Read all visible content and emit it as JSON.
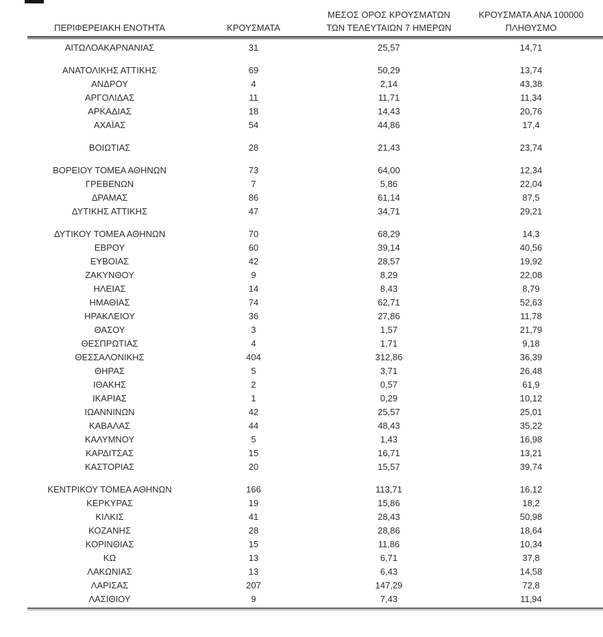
{
  "table": {
    "header": {
      "col1": "ΠΕΡΙΦΕΡΕΙΑΚΗ ΕΝΟΤΗΤΑ",
      "col2": "ΚΡΟΥΣΜΑΤΑ",
      "col3_line1": "ΜΕΣΟΣ ΟΡΟΣ ΚΡΟΥΣΜΑΤΩΝ",
      "col3_line2": "ΤΩΝ ΤΕΛΕΥΤΑΙΩΝ 7 ΗΜΕΡΩΝ",
      "col4_line1": "ΚΡΟΥΣΜΑΤΑ ΑΝΑ 100000",
      "col4_line2": "ΠΛΗΘΥΣΜΟ"
    },
    "row_fields": [
      "region",
      "cases",
      "avg_7day",
      "per_100k"
    ],
    "groups": [
      {
        "rows": [
          {
            "region": "ΑΙΤΩΛΟΑΚΑΡΝΑΝΙΑΣ",
            "cases": "31",
            "avg_7day": "25,57",
            "per_100k": "14,71"
          }
        ]
      },
      {
        "rows": [
          {
            "region": "ΑΝΑΤΟΛΙΚΗΣ ΑΤΤΙΚΗΣ",
            "cases": "69",
            "avg_7day": "50,29",
            "per_100k": "13,74"
          },
          {
            "region": "ΑΝΔΡΟΥ",
            "cases": "4",
            "avg_7day": "2,14",
            "per_100k": "43,38"
          },
          {
            "region": "ΑΡΓΟΛΙΔΑΣ",
            "cases": "11",
            "avg_7day": "11,71",
            "per_100k": "11,34"
          },
          {
            "region": "ΑΡΚΑΔΙΑΣ",
            "cases": "18",
            "avg_7day": "14,43",
            "per_100k": "20,76"
          },
          {
            "region": "ΑΧΑΪΑΣ",
            "cases": "54",
            "avg_7day": "44,86",
            "per_100k": "17,4"
          }
        ]
      },
      {
        "rows": [
          {
            "region": "ΒΟΙΩΤΙΑΣ",
            "cases": "28",
            "avg_7day": "21,43",
            "per_100k": "23,74"
          }
        ]
      },
      {
        "rows": [
          {
            "region": "ΒΟΡΕΙΟΥ ΤΟΜΕΑ ΑΘΗΝΩΝ",
            "cases": "73",
            "avg_7day": "64,00",
            "per_100k": "12,34"
          },
          {
            "region": "ΓΡΕΒΕΝΩΝ",
            "cases": "7",
            "avg_7day": "5,86",
            "per_100k": "22,04"
          },
          {
            "region": "ΔΡΑΜΑΣ",
            "cases": "86",
            "avg_7day": "61,14",
            "per_100k": "87,5"
          },
          {
            "region": "ΔΥΤΙΚΗΣ ΑΤΤΙΚΗΣ",
            "cases": "47",
            "avg_7day": "34,71",
            "per_100k": "29,21"
          }
        ]
      },
      {
        "rows": [
          {
            "region": "ΔΥΤΙΚΟΥ ΤΟΜΕΑ ΑΘΗΝΩΝ",
            "cases": "70",
            "avg_7day": "68,29",
            "per_100k": "14,3"
          },
          {
            "region": "ΕΒΡΟΥ",
            "cases": "60",
            "avg_7day": "39,14",
            "per_100k": "40,56"
          },
          {
            "region": "ΕΥΒΟΙΑΣ",
            "cases": "42",
            "avg_7day": "28,57",
            "per_100k": "19,92"
          },
          {
            "region": "ΖΑΚΥΝΘΟΥ",
            "cases": "9",
            "avg_7day": "8,29",
            "per_100k": "22,08"
          },
          {
            "region": "ΗΛΕΙΑΣ",
            "cases": "14",
            "avg_7day": "8,43",
            "per_100k": "8,79"
          },
          {
            "region": "ΗΜΑΘΙΑΣ",
            "cases": "74",
            "avg_7day": "62,71",
            "per_100k": "52,63"
          },
          {
            "region": "ΗΡΑΚΛΕΙΟΥ",
            "cases": "36",
            "avg_7day": "27,86",
            "per_100k": "11,78"
          },
          {
            "region": "ΘΑΣΟΥ",
            "cases": "3",
            "avg_7day": "1,57",
            "per_100k": "21,79"
          },
          {
            "region": "ΘΕΣΠΡΩΤΙΑΣ",
            "cases": "4",
            "avg_7day": "1,71",
            "per_100k": "9,18"
          },
          {
            "region": "ΘΕΣΣΑΛΟΝΙΚΗΣ",
            "cases": "404",
            "avg_7day": "312,86",
            "per_100k": "36,39"
          },
          {
            "region": "ΘΗΡΑΣ",
            "cases": "5",
            "avg_7day": "3,71",
            "per_100k": "26,48"
          },
          {
            "region": "ΙΘΑΚΗΣ",
            "cases": "2",
            "avg_7day": "0,57",
            "per_100k": "61,9"
          },
          {
            "region": "ΙΚΑΡΙΑΣ",
            "cases": "1",
            "avg_7day": "0,29",
            "per_100k": "10,12"
          },
          {
            "region": "ΙΩΑΝΝΙΝΩΝ",
            "cases": "42",
            "avg_7day": "25,57",
            "per_100k": "25,01"
          },
          {
            "region": "ΚΑΒΑΛΑΣ",
            "cases": "44",
            "avg_7day": "48,43",
            "per_100k": "35,22"
          },
          {
            "region": "ΚΑΛΥΜΝΟΥ",
            "cases": "5",
            "avg_7day": "1,43",
            "per_100k": "16,98"
          },
          {
            "region": "ΚΑΡΔΙΤΣΑΣ",
            "cases": "15",
            "avg_7day": "16,71",
            "per_100k": "13,21"
          },
          {
            "region": "ΚΑΣΤΟΡΙΑΣ",
            "cases": "20",
            "avg_7day": "15,57",
            "per_100k": "39,74"
          }
        ]
      },
      {
        "rows": [
          {
            "region": "ΚΕΝΤΡΙΚΟΥ ΤΟΜΕΑ ΑΘΗΝΩΝ",
            "cases": "166",
            "avg_7day": "113,71",
            "per_100k": "16,12"
          },
          {
            "region": "ΚΕΡΚΥΡΑΣ",
            "cases": "19",
            "avg_7day": "15,86",
            "per_100k": "18,2"
          },
          {
            "region": "ΚΙΛΚΙΣ",
            "cases": "41",
            "avg_7day": "28,43",
            "per_100k": "50,98"
          },
          {
            "region": "ΚΟΖΑΝΗΣ",
            "cases": "28",
            "avg_7day": "28,86",
            "per_100k": "18,64"
          },
          {
            "region": "ΚΟΡΙΝΘΙΑΣ",
            "cases": "15",
            "avg_7day": "11,86",
            "per_100k": "10,34"
          },
          {
            "region": "ΚΩ",
            "cases": "13",
            "avg_7day": "6,71",
            "per_100k": "37,8"
          },
          {
            "region": "ΛΑΚΩΝΙΑΣ",
            "cases": "13",
            "avg_7day": "6,43",
            "per_100k": "14,58"
          },
          {
            "region": "ΛΑΡΙΣΑΣ",
            "cases": "207",
            "avg_7day": "147,29",
            "per_100k": "72,8"
          },
          {
            "region": "ΛΑΣΙΘΙΟΥ",
            "cases": "9",
            "avg_7day": "7,43",
            "per_100k": "11,94"
          }
        ]
      }
    ]
  },
  "colors": {
    "text": "#2b2b2b",
    "header_rule": "#363636",
    "bottom_rule": "#585858",
    "background": "#ffffff"
  }
}
